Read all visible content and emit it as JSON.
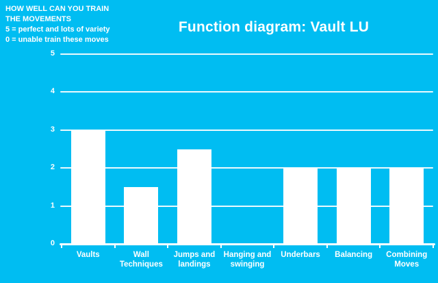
{
  "annotation": {
    "lines": [
      "HOW WELL CAN YOU TRAIN",
      "THE MOVEMENTS",
      "5 = perfect and lots of variety",
      "0 = unable train these moves"
    ]
  },
  "title": "Function diagram: Vault LU",
  "colors": {
    "background": "#00BDF2",
    "bar": "#FFFFFF",
    "text": "#FFFFFF",
    "gridline": "#FFFFFF"
  },
  "chart_data": {
    "type": "bar",
    "title": "Function diagram: Vault LU",
    "categories": [
      "Vaults",
      "Wall Techniques",
      "Jumps and landings",
      "Hanging and swinging",
      "Underbars",
      "Balancing",
      "Combining Moves"
    ],
    "values": [
      3,
      1.5,
      2.5,
      0,
      2,
      2,
      2
    ],
    "xlabel": "",
    "ylabel": "",
    "ylim": [
      0,
      5
    ],
    "yticks": [
      0,
      1,
      2,
      3,
      4,
      5
    ],
    "grid": true,
    "legend": false,
    "bar_color": "#FFFFFF",
    "background_color": "#00BDF2"
  }
}
